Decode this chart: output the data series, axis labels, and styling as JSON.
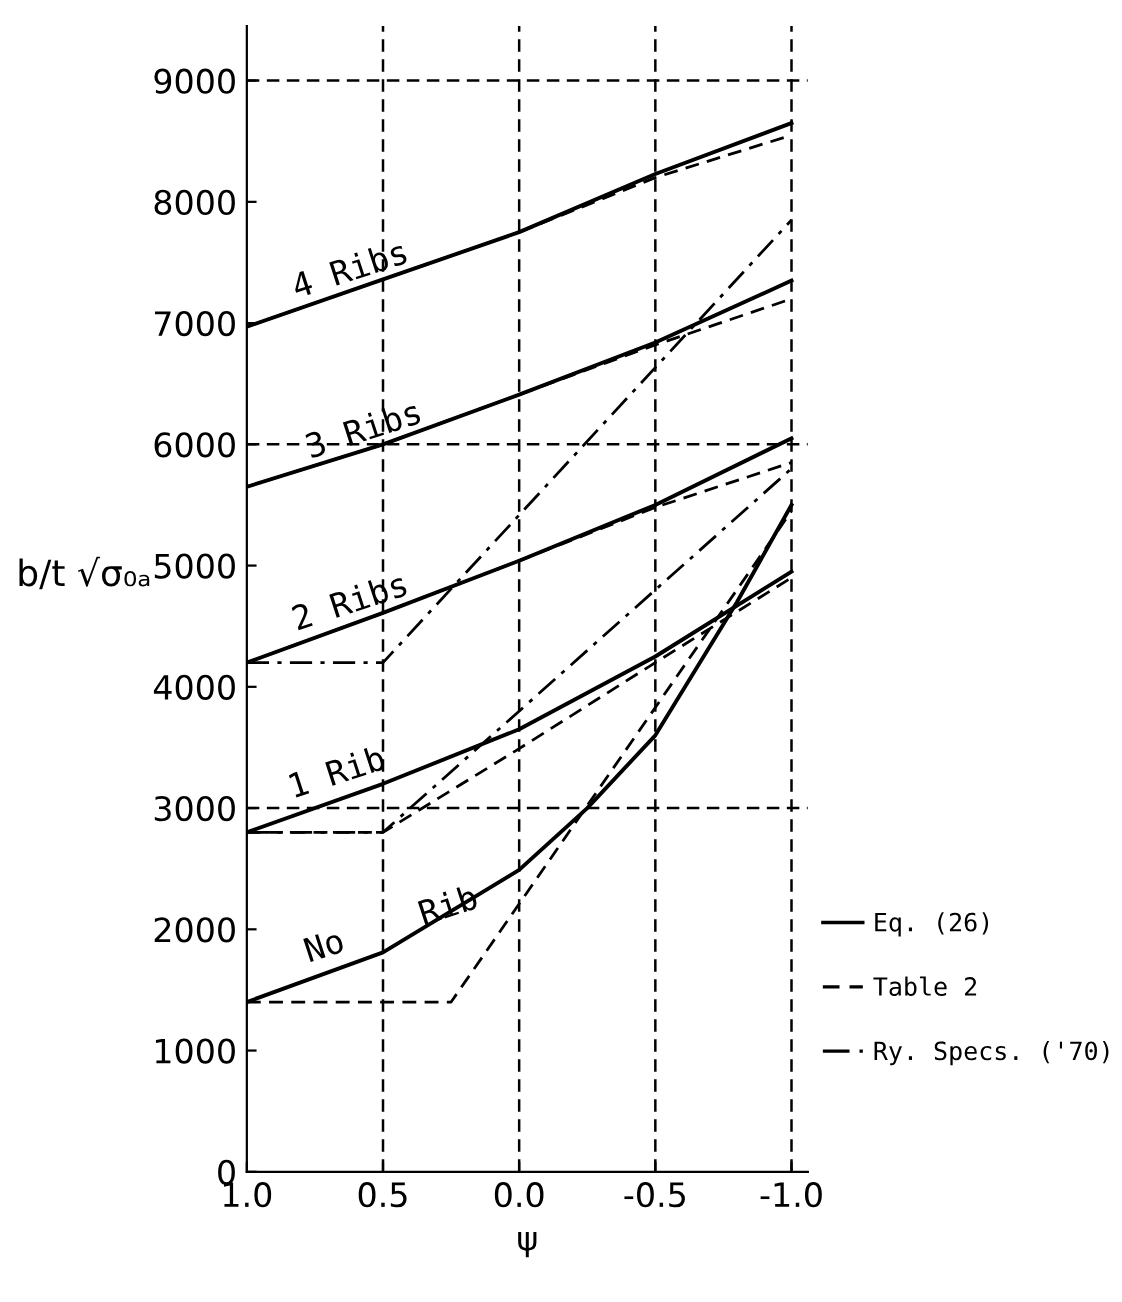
{
  "chart_data": {
    "type": "line",
    "xlabel": "ψ",
    "ylabel": "b/t √σ₀ₐ",
    "xlim": [
      1.0,
      -1.06
    ],
    "ylim": [
      0,
      9450
    ],
    "xticks": [
      {
        "value": 1.0,
        "label": "1.0"
      },
      {
        "value": 0.5,
        "label": "0.5"
      },
      {
        "value": 0.0,
        "label": "0.0"
      },
      {
        "value": -0.5,
        "label": "-0.5"
      },
      {
        "value": -1.0,
        "label": "-1.0"
      }
    ],
    "yticks": [
      0,
      1000,
      2000,
      3000,
      4000,
      5000,
      6000,
      7000,
      8000,
      9000
    ],
    "grid": false,
    "legend": "bottom right",
    "marker": "none",
    "series": [
      {
        "name": "Eq. (26)",
        "color": "#000000",
        "line_style": "solid",
        "x": [
          1.0,
          0.5,
          0.0,
          -0.5,
          -1.0
        ],
        "values": [
          6970,
          7360,
          7750,
          8230,
          8650
        ]
      },
      {
        "color": "#000000",
        "line_style": "solid",
        "x": [
          1.0,
          0.5,
          0.0,
          -0.5,
          -1.0
        ],
        "values": [
          5650,
          6000,
          6410,
          6840,
          7350
        ]
      },
      {
        "color": "#000000",
        "line_style": "solid",
        "x": [
          1.0,
          0.5,
          0.0,
          -0.5,
          -1.0
        ],
        "values": [
          4200,
          4610,
          5040,
          5500,
          6050
        ]
      },
      {
        "color": "#000000",
        "line_style": "solid",
        "x": [
          1.0,
          0.5,
          0.0,
          -0.5,
          -1.0
        ],
        "values": [
          2800,
          3200,
          3650,
          4250,
          4950
        ]
      },
      {
        "color": "#000000",
        "line_style": "solid",
        "x": [
          1.0,
          0.5,
          0.0,
          -0.25,
          -0.5,
          -0.8,
          -1.0
        ],
        "values": [
          1400,
          1810,
          2490,
          3000,
          3600,
          4700,
          5500
        ]
      },
      {
        "name": "Table 2",
        "color": "#000000",
        "line_style": "dashed",
        "x": [
          1.0,
          0.5,
          0.0,
          -0.5,
          -1.0
        ],
        "values": [
          6970,
          7360,
          7750,
          8200,
          8550
        ]
      },
      {
        "color": "#000000",
        "line_style": "dashed",
        "x": [
          1.0,
          0.5,
          0.0,
          -0.5,
          -1.0
        ],
        "values": [
          5650,
          6000,
          6410,
          6820,
          7200
        ]
      },
      {
        "color": "#000000",
        "line_style": "dashed",
        "x": [
          1.0,
          0.5,
          0.0,
          -0.5,
          -1.0
        ],
        "values": [
          4200,
          4610,
          5040,
          5480,
          5850
        ]
      },
      {
        "color": "#000000",
        "line_style": "dashed",
        "x": [
          1.0,
          0.5,
          0.0,
          -0.5,
          -1.0
        ],
        "values": [
          2800,
          2800,
          3490,
          4200,
          4900
        ]
      },
      {
        "color": "#000000",
        "line_style": "dashed",
        "x": [
          1.0,
          0.25,
          -1.0
        ],
        "values": [
          1400,
          1400,
          5450
        ]
      },
      {
        "name": "Ry. Specs. ('70)",
        "color": "#000000",
        "line_style": "dashdot",
        "x": [
          1.0,
          0.5,
          -1.0
        ],
        "values": [
          4200,
          4200,
          7850
        ]
      },
      {
        "color": "#000000",
        "line_style": "dashdot",
        "x": [
          1.0,
          0.5,
          -1.0
        ],
        "values": [
          2800,
          2800,
          5800
        ]
      }
    ],
    "ref_lines": [
      {
        "axis": "x",
        "value": 0.5,
        "line_style": "dashed",
        "color": "#000000"
      },
      {
        "axis": "x",
        "value": 0.0,
        "line_style": "dashed",
        "color": "#000000"
      },
      {
        "axis": "x",
        "value": -0.5,
        "line_style": "dashed",
        "color": "#000000"
      },
      {
        "axis": "x",
        "value": -1.0,
        "line_style": "dashed",
        "color": "#000000"
      },
      {
        "axis": "y",
        "value": 9000,
        "line_style": "dashed",
        "color": "#000000"
      },
      {
        "axis": "y",
        "value": 6000,
        "line_style": "dashed",
        "color": "#000000"
      },
      {
        "axis": "y",
        "value": 3000,
        "line_style": "dashed",
        "color": "#000000"
      }
    ],
    "annotations": [
      {
        "text": "4 Ribs",
        "x": 0.6,
        "y": 7300
      },
      {
        "text": "3 Ribs",
        "x": 0.55,
        "y": 5980
      },
      {
        "text": "2 Ribs",
        "x": 0.6,
        "y": 4560
      },
      {
        "text": "1 Rib",
        "x": 0.65,
        "y": 3150
      },
      {
        "text": "No    Rib",
        "x": 0.45,
        "y": 1900
      }
    ]
  }
}
